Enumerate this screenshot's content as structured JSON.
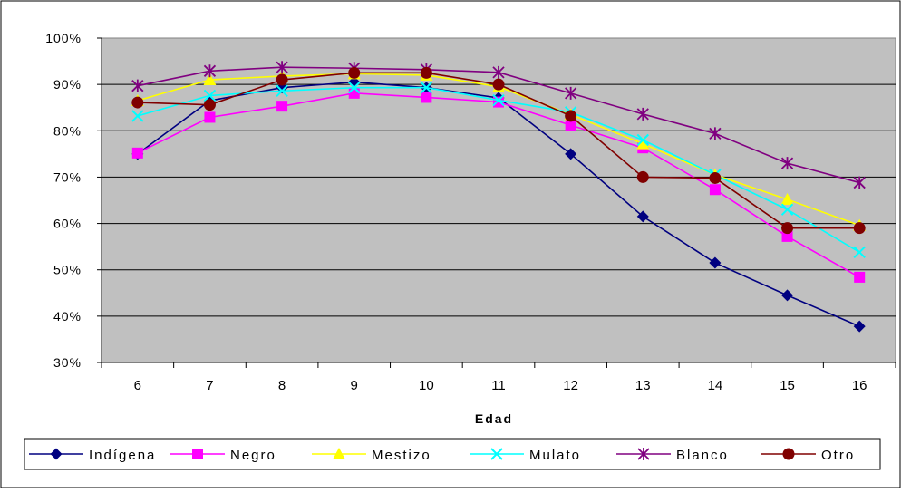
{
  "chart_data": {
    "type": "line",
    "xlabel": "Edad",
    "ylabel": "",
    "x": [
      6,
      7,
      8,
      9,
      10,
      11,
      12,
      13,
      14,
      15,
      16
    ],
    "x_tick_labels": [
      "6",
      "7",
      "8",
      "9",
      "10",
      "11",
      "12",
      "13",
      "14",
      "15",
      "16"
    ],
    "ylim": [
      0.3,
      1.0
    ],
    "y_ticks": [
      0.3,
      0.4,
      0.5,
      0.6,
      0.7,
      0.8,
      0.9,
      1.0
    ],
    "y_tick_labels": [
      "30%",
      "40%",
      "50%",
      "60%",
      "70%",
      "80%",
      "90%",
      "100%"
    ],
    "grid": "horizontal",
    "plot_background": "#c0c0c0",
    "legend_position": "bottom",
    "series": [
      {
        "name": "Indígena",
        "color": "#000080",
        "marker": "diamond",
        "values": [
          0.75,
          0.865,
          0.893,
          0.905,
          0.893,
          0.871,
          0.75,
          0.615,
          0.515,
          0.445,
          0.378
        ]
      },
      {
        "name": "Negro",
        "color": "#ff00ff",
        "marker": "square",
        "values": [
          0.752,
          0.829,
          0.853,
          0.881,
          0.872,
          0.862,
          0.812,
          0.763,
          0.673,
          0.572,
          0.484
        ]
      },
      {
        "name": "Mestizo",
        "color": "#ffff00",
        "marker": "triangle",
        "values": [
          0.865,
          0.91,
          0.918,
          0.923,
          0.92,
          0.895,
          0.835,
          0.772,
          0.705,
          0.652,
          0.596
        ]
      },
      {
        "name": "Mulato",
        "color": "#00ffff",
        "marker": "x",
        "values": [
          0.832,
          0.876,
          0.886,
          0.893,
          0.893,
          0.866,
          0.84,
          0.78,
          0.705,
          0.63,
          0.538
        ]
      },
      {
        "name": "Blanco",
        "color": "#800080",
        "marker": "star",
        "values": [
          0.897,
          0.929,
          0.937,
          0.935,
          0.932,
          0.926,
          0.881,
          0.836,
          0.794,
          0.73,
          0.688
        ]
      },
      {
        "name": "Otro",
        "color": "#800000",
        "marker": "circle",
        "values": [
          0.861,
          0.856,
          0.91,
          0.925,
          0.925,
          0.9,
          0.832,
          0.7,
          0.698,
          0.59,
          0.59
        ]
      }
    ]
  }
}
